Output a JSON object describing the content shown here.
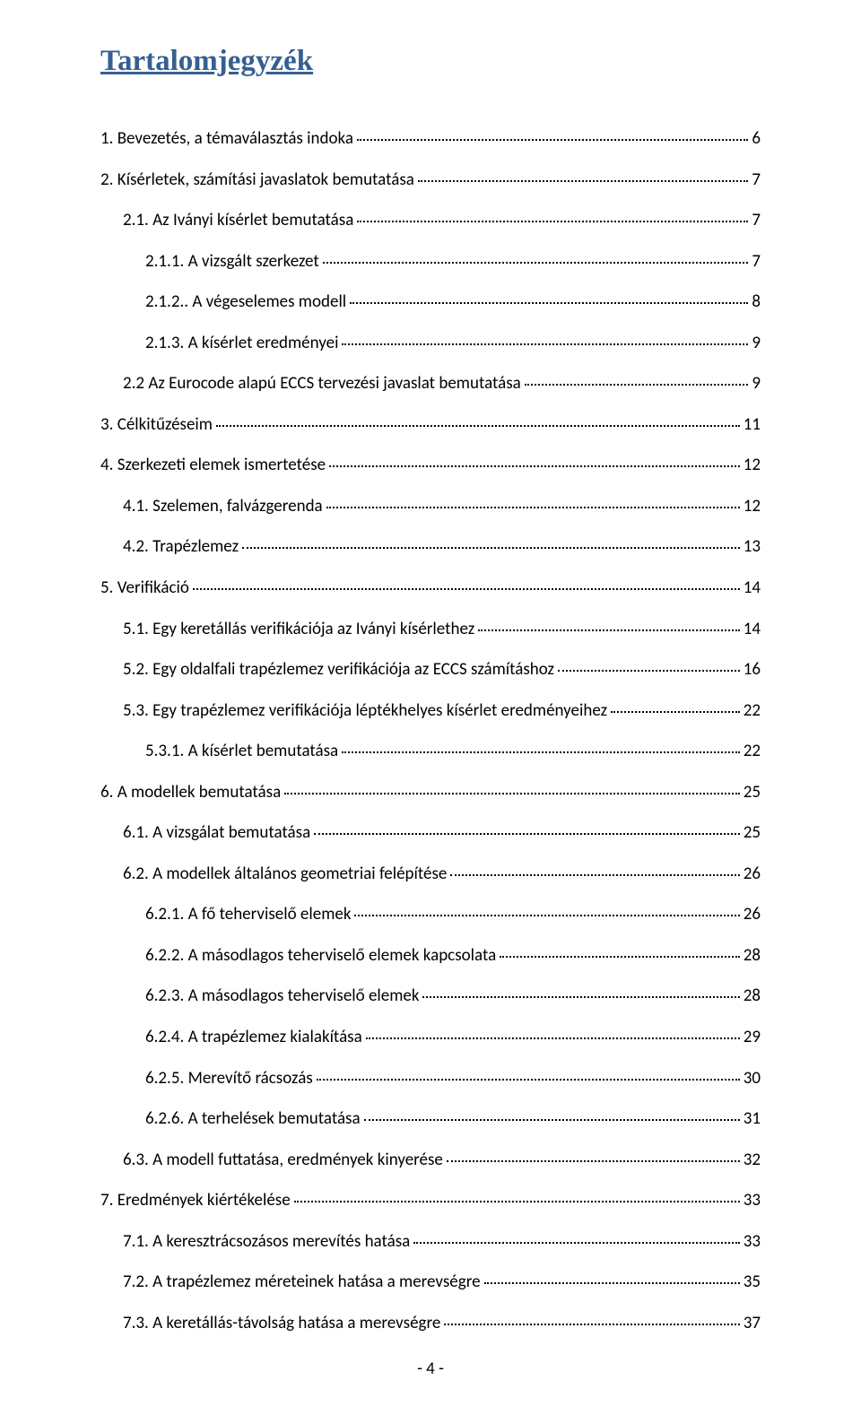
{
  "title": "Tartalomjegyzék",
  "footer": "- 4 -",
  "colors": {
    "heading": "#365f91",
    "text": "#000000",
    "background": "#ffffff"
  },
  "entries": [
    {
      "indent": 0,
      "label": "1. Bevezetés, a témaválasztás indoka",
      "page": "6"
    },
    {
      "indent": 0,
      "label": "2. Kísérletek, számítási javaslatok bemutatása",
      "page": "7"
    },
    {
      "indent": 1,
      "label": "2.1. Az Iványi kísérlet bemutatása",
      "page": "7"
    },
    {
      "indent": 2,
      "label": "2.1.1. A vizsgált szerkezet",
      "page": "7"
    },
    {
      "indent": 2,
      "label": "2.1.2.. A végeselemes modell",
      "page": "8"
    },
    {
      "indent": 2,
      "label": "2.1.3. A kísérlet eredményei",
      "page": "9"
    },
    {
      "indent": 1,
      "label": "2.2 Az Eurocode alapú ECCS tervezési javaslat bemutatása",
      "page": "9"
    },
    {
      "indent": 0,
      "label": "3. Célkitűzéseim",
      "page": "11"
    },
    {
      "indent": 0,
      "label": "4. Szerkezeti elemek ismertetése",
      "page": "12"
    },
    {
      "indent": 1,
      "label": "4.1. Szelemen, falvázgerenda",
      "page": "12"
    },
    {
      "indent": 1,
      "label": "4.2. Trapézlemez",
      "page": "13"
    },
    {
      "indent": 0,
      "label": "5. Verifikáció",
      "page": "14"
    },
    {
      "indent": 1,
      "label": "5.1. Egy keretállás verifikációja az Iványi kísérlethez",
      "page": "14"
    },
    {
      "indent": 1,
      "label": "5.2. Egy oldalfali trapézlemez verifikációja az ECCS számításhoz",
      "page": "16"
    },
    {
      "indent": 1,
      "label": "5.3. Egy trapézlemez verifikációja léptékhelyes kísérlet eredményeihez",
      "page": "22"
    },
    {
      "indent": 2,
      "label": "5.3.1. A kísérlet bemutatása",
      "page": "22"
    },
    {
      "indent": 0,
      "label": "6. A modellek bemutatása",
      "page": "25"
    },
    {
      "indent": 1,
      "label": "6.1. A vizsgálat bemutatása",
      "page": "25"
    },
    {
      "indent": 1,
      "label": "6.2. A modellek általános geometriai felépítése",
      "page": "26"
    },
    {
      "indent": 2,
      "label": "6.2.1. A fő teherviselő elemek",
      "page": "26"
    },
    {
      "indent": 2,
      "label": "6.2.2. A másodlagos teherviselő elemek kapcsolata",
      "page": "28"
    },
    {
      "indent": 2,
      "label": "6.2.3. A másodlagos teherviselő elemek",
      "page": "28"
    },
    {
      "indent": 2,
      "label": "6.2.4. A trapézlemez kialakítása",
      "page": "29"
    },
    {
      "indent": 2,
      "label": "6.2.5. Merevítő rácsozás",
      "page": "30"
    },
    {
      "indent": 2,
      "label": "6.2.6. A terhelések bemutatása",
      "page": "31"
    },
    {
      "indent": 1,
      "label": "6.3. A modell futtatása, eredmények kinyerése",
      "page": "32"
    },
    {
      "indent": 0,
      "label": "7. Eredmények kiértékelése",
      "page": "33"
    },
    {
      "indent": 1,
      "label": "7.1. A keresztrácsozásos merevítés hatása",
      "page": "33"
    },
    {
      "indent": 1,
      "label": "7.2. A trapézlemez méreteinek hatása a merevségre",
      "page": "35"
    },
    {
      "indent": 1,
      "label": "7.3. A keretállás-távolság hatása a merevségre",
      "page": "37"
    }
  ]
}
